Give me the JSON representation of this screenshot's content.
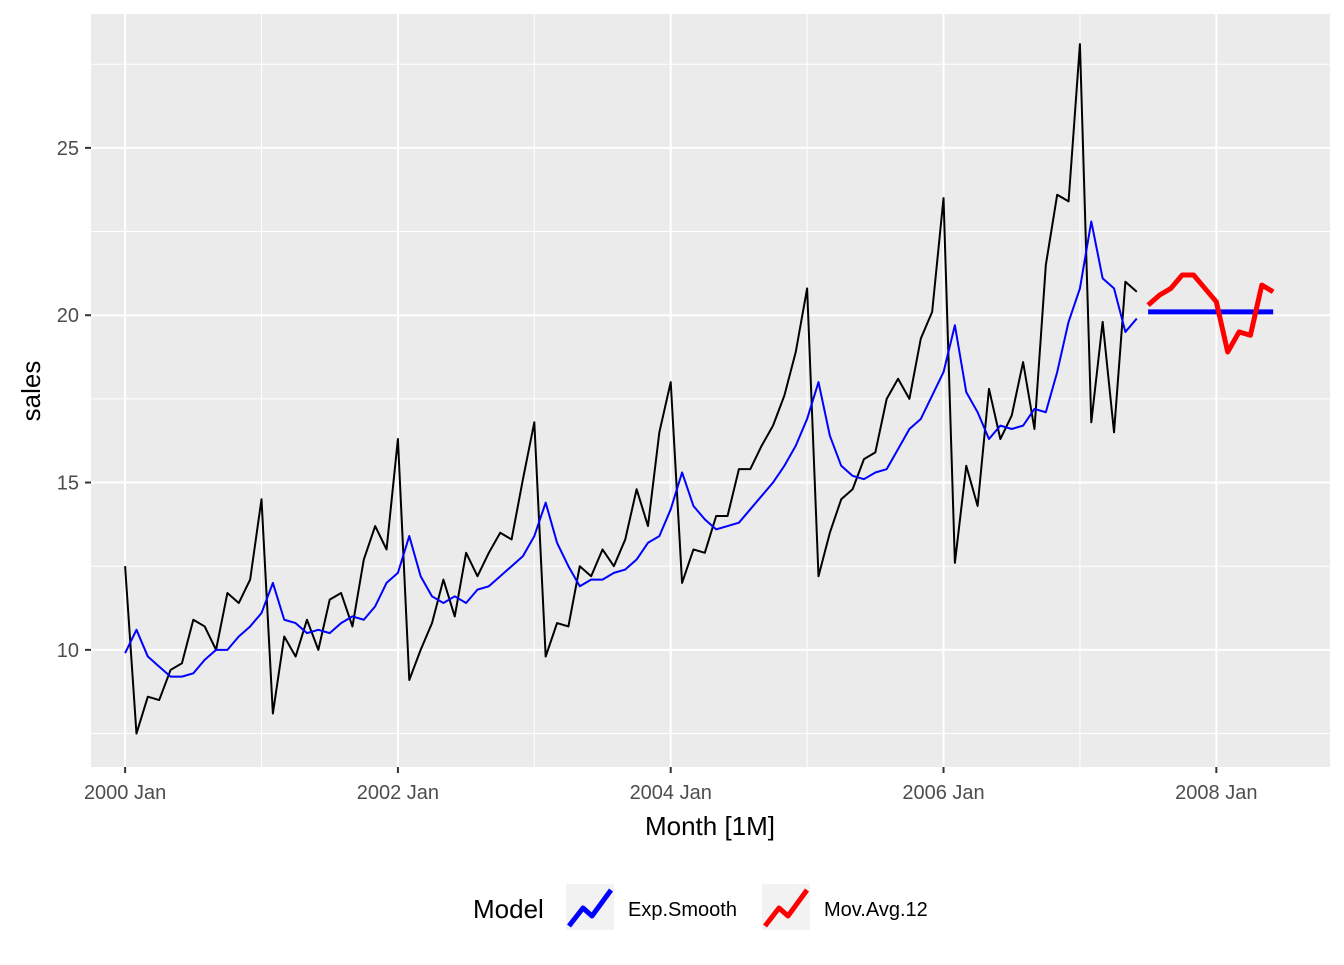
{
  "chart_data": {
    "type": "line",
    "title": "",
    "xlabel": "Month [1M]",
    "ylabel": "sales",
    "x_start": "2000 Jan",
    "x_ticks": [
      "2000 Jan",
      "2002 Jan",
      "2004 Jan",
      "2006 Jan",
      "2008 Jan"
    ],
    "y_ticks": [
      10,
      15,
      20,
      25
    ],
    "ylim": [
      6.5,
      29.0
    ],
    "xlim": [
      "1999 Oct",
      "2008 Nov"
    ],
    "grid": true,
    "legend": {
      "title": "Model",
      "position": "bottom",
      "entries": [
        "Exp.Smooth",
        "Mov.Avg.12"
      ]
    },
    "colors": {
      "panel": "#EBEBEB",
      "grid": "#FFFFFF",
      "actual": "#000000",
      "fitted": "#0000FF",
      "exp_smooth": "#0000FF",
      "mov_avg": "#FF0000"
    },
    "series": [
      {
        "role": "observed",
        "start": "2000 Jan",
        "values": [
          12.5,
          7.5,
          8.6,
          8.5,
          9.4,
          9.6,
          10.9,
          10.7,
          10.0,
          11.7,
          11.4,
          12.1,
          14.5,
          8.1,
          10.4,
          9.8,
          10.9,
          10.0,
          11.5,
          11.7,
          10.7,
          12.7,
          13.7,
          13.0,
          16.3,
          9.1,
          10.0,
          10.8,
          12.1,
          11.0,
          12.9,
          12.2,
          12.9,
          13.5,
          13.3,
          15.1,
          16.8,
          9.8,
          10.8,
          10.7,
          12.5,
          12.2,
          13.0,
          12.5,
          13.3,
          14.8,
          13.7,
          16.5,
          18.0,
          12.0,
          13.0,
          12.9,
          14.0,
          14.0,
          15.4,
          15.4,
          16.1,
          16.7,
          17.6,
          18.9,
          20.8,
          12.2,
          13.5,
          14.5,
          14.8,
          15.7,
          15.9,
          17.5,
          18.1,
          17.5,
          19.3,
          20.1,
          23.5,
          12.6,
          15.5,
          14.3,
          17.8,
          16.3,
          17.0,
          18.6,
          16.6,
          21.5,
          23.6,
          23.4,
          28.1,
          16.8,
          19.8,
          16.5,
          21.0,
          20.7
        ]
      },
      {
        "role": "fitted",
        "start": "2000 Jan",
        "values": [
          9.9,
          10.6,
          9.8,
          9.5,
          9.2,
          9.2,
          9.3,
          9.7,
          10.0,
          10.0,
          10.4,
          10.7,
          11.1,
          12.0,
          10.9,
          10.8,
          10.5,
          10.6,
          10.5,
          10.8,
          11.0,
          10.9,
          11.3,
          12.0,
          12.3,
          13.4,
          12.2,
          11.6,
          11.4,
          11.6,
          11.4,
          11.8,
          11.9,
          12.2,
          12.5,
          12.8,
          13.4,
          14.4,
          13.2,
          12.5,
          11.9,
          12.1,
          12.1,
          12.3,
          12.4,
          12.7,
          13.2,
          13.4,
          14.2,
          15.3,
          14.3,
          13.9,
          13.6,
          13.7,
          13.8,
          14.2,
          14.6,
          15.0,
          15.5,
          16.1,
          16.9,
          18.0,
          16.4,
          15.5,
          15.2,
          15.1,
          15.3,
          15.4,
          16.0,
          16.6,
          16.9,
          17.6,
          18.3,
          19.7,
          17.7,
          17.1,
          16.3,
          16.7,
          16.6,
          16.7,
          17.2,
          17.1,
          18.3,
          19.8,
          20.8,
          22.8,
          21.1,
          20.8,
          19.5,
          19.9
        ]
      },
      {
        "name": "Exp.Smooth",
        "start": "2007 Jul",
        "values": [
          20.1,
          20.1,
          20.1,
          20.1,
          20.1,
          20.1,
          20.1,
          20.1,
          20.1,
          20.1,
          20.1,
          20.1
        ]
      },
      {
        "name": "Mov.Avg.12",
        "start": "2007 Jul",
        "values": [
          20.3,
          20.6,
          20.8,
          21.2,
          21.2,
          20.8,
          20.4,
          18.9,
          19.5,
          19.4,
          20.9,
          20.7
        ]
      }
    ]
  }
}
